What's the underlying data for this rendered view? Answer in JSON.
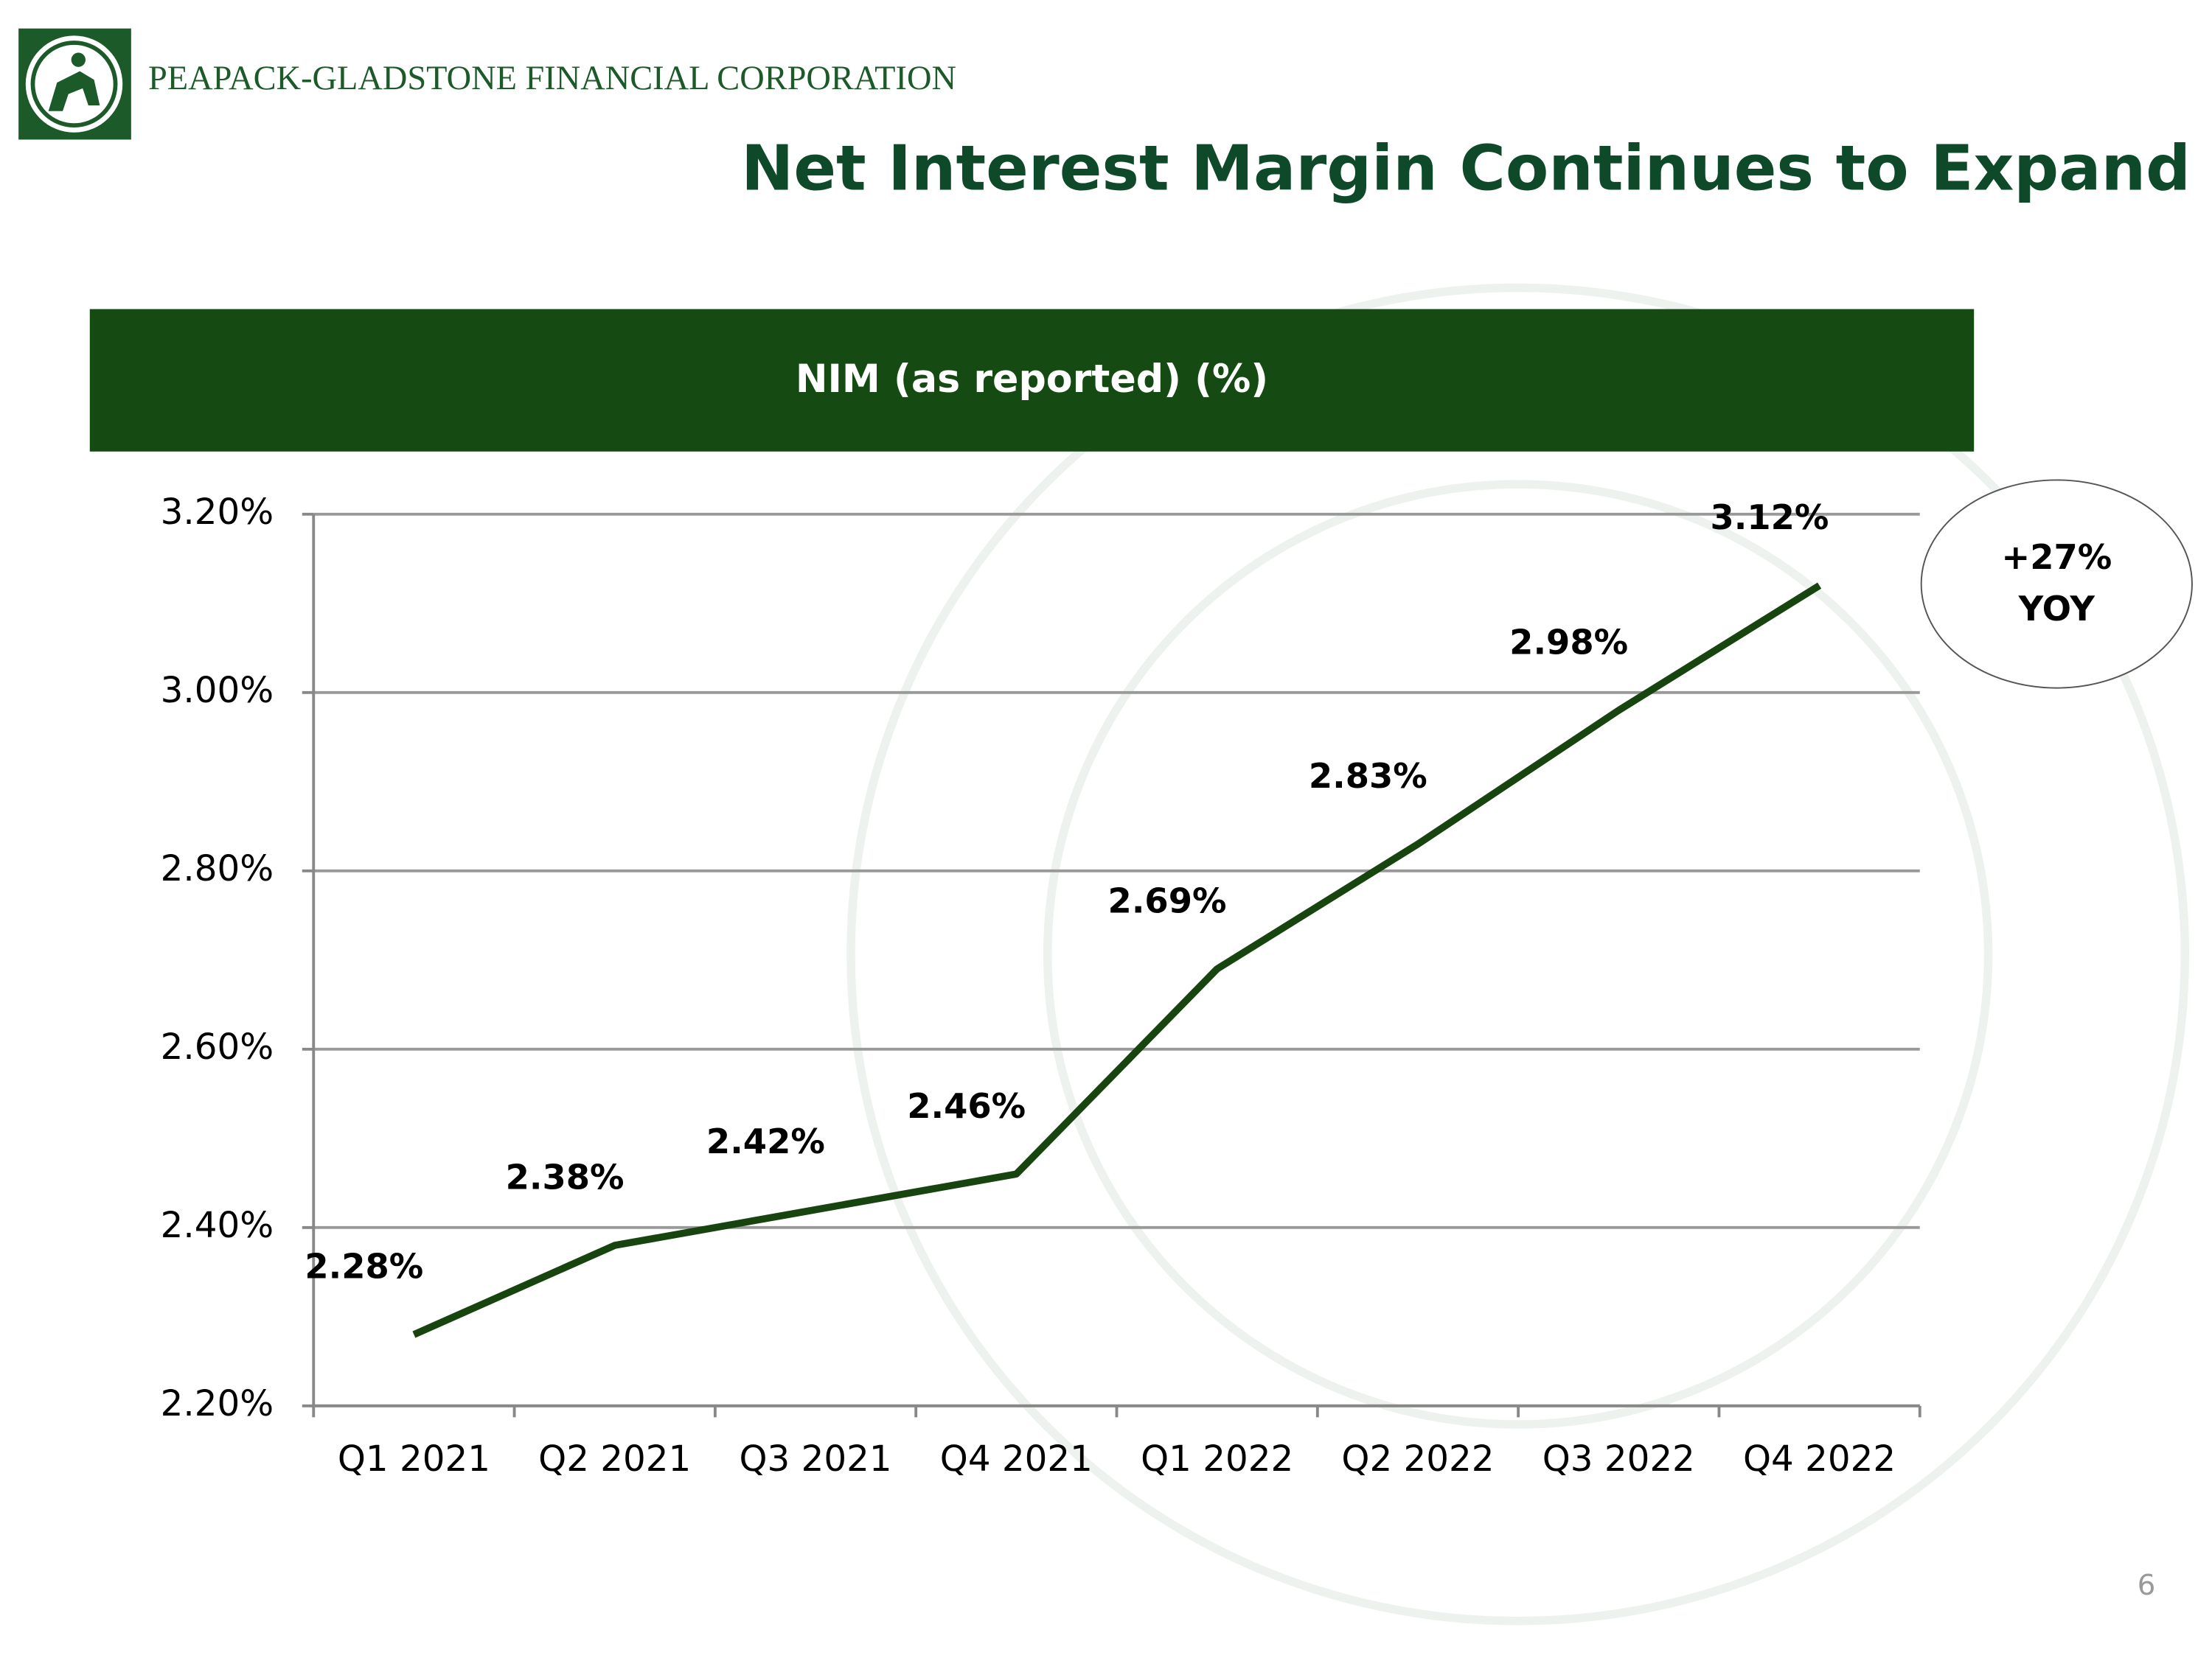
{
  "company": "PEAPACK-GLADSTONE FINANCIAL CORPORATION",
  "slide_title": "Net Interest Margin Continues to Expand",
  "page_number": 6,
  "chart_data": {
    "type": "line",
    "title": "NIM (as reported) (%)",
    "categories": [
      "Q1 2021",
      "Q2 2021",
      "Q3 2021",
      "Q4 2021",
      "Q1 2022",
      "Q2 2022",
      "Q3 2022",
      "Q4 2022"
    ],
    "values": [
      2.28,
      2.38,
      2.42,
      2.46,
      2.69,
      2.83,
      2.98,
      3.12
    ],
    "value_labels": [
      "2.28%",
      "2.38%",
      "2.42%",
      "2.46%",
      "2.69%",
      "2.83%",
      "2.98%",
      "3.12%"
    ],
    "color": "#17440f",
    "ylim": [
      2.2,
      3.2
    ],
    "yticks": [
      {
        "value": 2.2,
        "label": "2.20%"
      },
      {
        "value": 2.4,
        "label": "2.40%"
      },
      {
        "value": 2.6,
        "label": "2.60%"
      },
      {
        "value": 2.8,
        "label": "2.80%"
      },
      {
        "value": 3.0,
        "label": "3.00%"
      },
      {
        "value": 3.2,
        "label": "3.20%"
      }
    ],
    "grid": true,
    "annotation": [
      "+27%",
      "YOY"
    ]
  }
}
